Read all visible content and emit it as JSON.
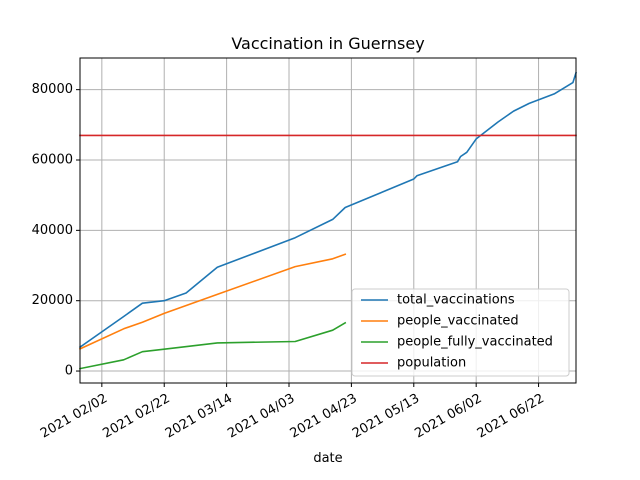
{
  "chart_data": {
    "type": "line",
    "title": "Vaccination in Guernsey",
    "xlabel": "date",
    "ylabel": "",
    "x_axis": {
      "type": "date",
      "range": [
        "2021-01-26",
        "2021-07-04"
      ],
      "ticks": [
        {
          "date": "2021-02-02",
          "label": "2021 02/02"
        },
        {
          "date": "2021-02-22",
          "label": "2021 02/22"
        },
        {
          "date": "2021-03-14",
          "label": "2021 03/14"
        },
        {
          "date": "2021-04-03",
          "label": "2021 04/03"
        },
        {
          "date": "2021-04-23",
          "label": "2021 04/23"
        },
        {
          "date": "2021-05-13",
          "label": "2021 05/13"
        },
        {
          "date": "2021-06-02",
          "label": "2021 06/02"
        },
        {
          "date": "2021-06-22",
          "label": "2021 06/22"
        }
      ]
    },
    "y_axis": {
      "range": [
        -3400,
        89000
      ],
      "ticks": [
        {
          "value": 0,
          "label": "0"
        },
        {
          "value": 20000,
          "label": "20000"
        },
        {
          "value": 40000,
          "label": "40000"
        },
        {
          "value": 60000,
          "label": "60000"
        },
        {
          "value": 80000,
          "label": "80000"
        }
      ]
    },
    "grid": true,
    "legend_position": "lower right",
    "series": [
      {
        "name": "total_vaccinations",
        "color": "#1f77b4",
        "points": [
          [
            "2021-01-26",
            6800
          ],
          [
            "2021-02-09",
            15500
          ],
          [
            "2021-02-15",
            19300
          ],
          [
            "2021-02-22",
            20000
          ],
          [
            "2021-03-01",
            22200
          ],
          [
            "2021-03-11",
            29500
          ],
          [
            "2021-04-05",
            37900
          ],
          [
            "2021-04-17",
            43100
          ],
          [
            "2021-04-21",
            46500
          ],
          [
            "2021-05-13",
            54600
          ],
          [
            "2021-05-14",
            55500
          ],
          [
            "2021-05-27",
            59500
          ],
          [
            "2021-05-28",
            61000
          ],
          [
            "2021-05-30",
            62200
          ],
          [
            "2021-06-02",
            66000
          ],
          [
            "2021-06-09",
            70800
          ],
          [
            "2021-06-14",
            73900
          ],
          [
            "2021-06-19",
            76100
          ],
          [
            "2021-06-27",
            78800
          ],
          [
            "2021-07-03",
            82000
          ],
          [
            "2021-07-07",
            84800
          ]
        ]
      },
      {
        "name": "people_vaccinated",
        "color": "#ff7f0e",
        "points": [
          [
            "2021-01-26",
            6300
          ],
          [
            "2021-02-09",
            12000
          ],
          [
            "2021-02-15",
            13900
          ],
          [
            "2021-02-22",
            16400
          ],
          [
            "2021-03-11",
            21800
          ],
          [
            "2021-04-05",
            29700
          ],
          [
            "2021-04-17",
            31900
          ],
          [
            "2021-04-21",
            33200
          ]
        ]
      },
      {
        "name": "people_fully_vaccinated",
        "color": "#2ca02c",
        "points": [
          [
            "2021-01-26",
            700
          ],
          [
            "2021-02-09",
            3200
          ],
          [
            "2021-02-15",
            5500
          ],
          [
            "2021-02-22",
            6200
          ],
          [
            "2021-03-11",
            8000
          ],
          [
            "2021-04-05",
            8400
          ],
          [
            "2021-04-17",
            11600
          ],
          [
            "2021-04-21",
            13700
          ]
        ]
      },
      {
        "name": "population",
        "color": "#d62728",
        "points": [
          [
            "2021-01-26",
            67000
          ],
          [
            "2021-07-04",
            67000
          ]
        ]
      }
    ]
  }
}
